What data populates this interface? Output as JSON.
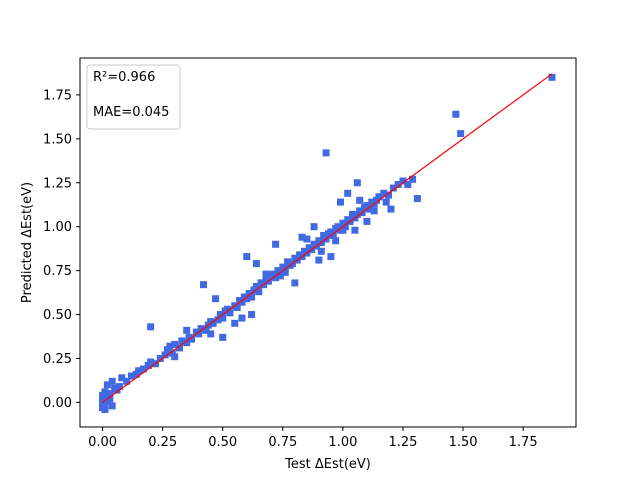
{
  "chart_data": {
    "type": "scatter",
    "title": "",
    "xlabel": "Test ΔEst(eV)",
    "ylabel": "Predicted ΔEst(eV)",
    "xlim": [
      -0.094,
      1.97
    ],
    "ylim": [
      -0.14,
      1.96
    ],
    "xticks": [
      0.0,
      0.25,
      0.5,
      0.75,
      1.0,
      1.25,
      1.5,
      1.75
    ],
    "xtick_labels": [
      "0.00",
      "0.25",
      "0.50",
      "0.75",
      "1.00",
      "1.25",
      "1.50",
      "1.75"
    ],
    "yticks": [
      0.0,
      0.25,
      0.5,
      0.75,
      1.0,
      1.25,
      1.5,
      1.75
    ],
    "ytick_labels": [
      "0.00",
      "0.25",
      "0.50",
      "0.75",
      "1.00",
      "1.25",
      "1.50",
      "1.75"
    ],
    "grid": false,
    "annotation_box": {
      "position": "top-left",
      "lines": [
        "R²=0.966",
        "MAE=0.045"
      ]
    },
    "colors": {
      "points": "#4169E1",
      "fit_line": "#FF0000"
    },
    "fit_line": {
      "x": [
        0.0,
        1.87
      ],
      "y": [
        0.0,
        1.87
      ]
    },
    "series": [
      {
        "marker": "square",
        "x": [
          0.0,
          0.01,
          0.02,
          0.03,
          0.0,
          0.01,
          0.02,
          0.04,
          0.05,
          0.0,
          0.01,
          0.03,
          0.06,
          0.02,
          0.0,
          0.04,
          0.07,
          0.08,
          0.1,
          0.12,
          0.14,
          0.15,
          0.17,
          0.19,
          0.2,
          0.22,
          0.24,
          0.26,
          0.27,
          0.29,
          0.3,
          0.32,
          0.33,
          0.35,
          0.36,
          0.37,
          0.39,
          0.4,
          0.41,
          0.43,
          0.44,
          0.45,
          0.46,
          0.48,
          0.49,
          0.5,
          0.51,
          0.52,
          0.53,
          0.55,
          0.56,
          0.57,
          0.58,
          0.59,
          0.6,
          0.61,
          0.62,
          0.63,
          0.64,
          0.65,
          0.66,
          0.67,
          0.68,
          0.69,
          0.7,
          0.71,
          0.72,
          0.73,
          0.74,
          0.75,
          0.76,
          0.77,
          0.78,
          0.79,
          0.8,
          0.81,
          0.82,
          0.83,
          0.84,
          0.85,
          0.86,
          0.87,
          0.88,
          0.89,
          0.9,
          0.91,
          0.92,
          0.93,
          0.94,
          0.95,
          0.96,
          0.97,
          0.98,
          0.99,
          1.0,
          1.01,
          1.02,
          1.03,
          1.04,
          1.05,
          1.06,
          1.07,
          1.08,
          1.09,
          1.1,
          1.11,
          1.12,
          1.13,
          1.14,
          1.15,
          1.17,
          1.19,
          1.21,
          1.23,
          1.25,
          1.27,
          1.29,
          0.2,
          0.35,
          0.42,
          0.47,
          0.6,
          0.5,
          0.64,
          0.72,
          0.85,
          0.9,
          0.8,
          0.95,
          1.02,
          1.07,
          1.1,
          0.66,
          0.74,
          0.83,
          0.97,
          1.05,
          0.88,
          0.55,
          0.45,
          0.3,
          0.28,
          0.62,
          0.58,
          0.68,
          0.76,
          0.91,
          0.99,
          1.13,
          1.18,
          0.93,
          1.0,
          1.04,
          1.2,
          1.31,
          1.06,
          1.47,
          1.49,
          1.87
        ],
        "y": [
          0.02,
          0.0,
          0.03,
          0.05,
          -0.03,
          0.06,
          0.01,
          -0.02,
          0.08,
          0.04,
          -0.04,
          0.02,
          0.07,
          0.1,
          0.0,
          0.12,
          0.09,
          0.14,
          0.12,
          0.15,
          0.16,
          0.18,
          0.19,
          0.21,
          0.23,
          0.22,
          0.25,
          0.27,
          0.3,
          0.28,
          0.33,
          0.31,
          0.35,
          0.34,
          0.37,
          0.36,
          0.4,
          0.39,
          0.42,
          0.41,
          0.44,
          0.46,
          0.45,
          0.47,
          0.5,
          0.48,
          0.52,
          0.53,
          0.51,
          0.55,
          0.54,
          0.58,
          0.57,
          0.6,
          0.59,
          0.62,
          0.6,
          0.64,
          0.66,
          0.63,
          0.68,
          0.67,
          0.7,
          0.69,
          0.72,
          0.73,
          0.71,
          0.75,
          0.74,
          0.77,
          0.76,
          0.8,
          0.78,
          0.79,
          0.82,
          0.81,
          0.84,
          0.83,
          0.86,
          0.85,
          0.88,
          0.87,
          0.9,
          0.89,
          0.92,
          0.91,
          0.95,
          0.93,
          0.96,
          0.97,
          0.95,
          0.99,
          1.0,
          0.98,
          1.02,
          1.0,
          1.04,
          1.03,
          1.06,
          1.05,
          1.07,
          1.09,
          1.08,
          1.11,
          1.12,
          1.1,
          1.14,
          1.13,
          1.15,
          1.17,
          1.19,
          1.18,
          1.22,
          1.24,
          1.26,
          1.24,
          1.27,
          0.43,
          0.41,
          0.67,
          0.59,
          0.83,
          0.37,
          0.79,
          0.9,
          0.93,
          0.81,
          0.68,
          0.83,
          1.19,
          1.15,
          1.03,
          0.68,
          0.72,
          0.94,
          0.92,
          0.98,
          1.0,
          0.45,
          0.39,
          0.26,
          0.32,
          0.5,
          0.48,
          0.73,
          0.74,
          0.86,
          1.14,
          1.09,
          1.14,
          1.42,
          0.98,
          1.07,
          1.1,
          1.16,
          1.25,
          1.64,
          1.53,
          1.85
        ]
      }
    ]
  }
}
